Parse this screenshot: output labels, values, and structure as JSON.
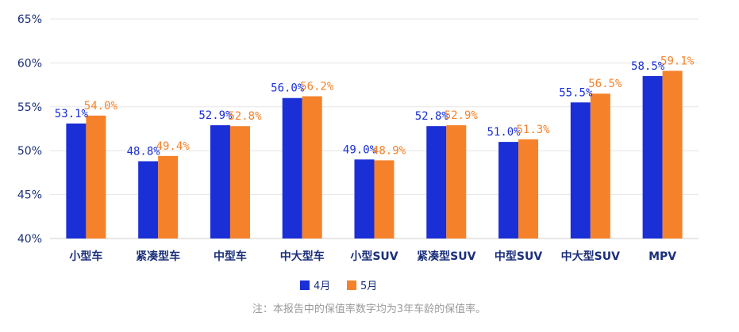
{
  "chart_data": {
    "type": "bar",
    "categories": [
      "小型车",
      "紧凑型车",
      "中型车",
      "中大型车",
      "小型SUV",
      "紧凑型SUV",
      "中型SUV",
      "中大型SUV",
      "MPV"
    ],
    "series": [
      {
        "name": "4月",
        "color": "#1a2fd6",
        "values": [
          53.1,
          48.8,
          52.9,
          56.0,
          49.0,
          52.8,
          51.0,
          55.5,
          58.5
        ],
        "labels": [
          "53.1%",
          "48.8%",
          "52.9%",
          "56.0%",
          "49.0%",
          "52.8%",
          "51.0%",
          "55.5%",
          "58.5%"
        ]
      },
      {
        "name": "5月",
        "color": "#f5822a",
        "values": [
          54.0,
          49.4,
          52.8,
          56.2,
          48.9,
          52.9,
          51.3,
          56.5,
          59.1
        ],
        "labels": [
          "54.0%",
          "49.4%",
          "52.8%",
          "56.2%",
          "48.9%",
          "52.9%",
          "51.3%",
          "56.5%",
          "59.1%"
        ]
      }
    ],
    "ylim": [
      40,
      65
    ],
    "yticks": [
      40,
      45,
      50,
      55,
      60,
      65
    ],
    "ytick_labels": [
      "40%",
      "45%",
      "50%",
      "55%",
      "60%",
      "65%"
    ],
    "grid": true,
    "legend_position": "bottom-center",
    "title": "",
    "xlabel": "",
    "ylabel": ""
  },
  "footnote": "注：本报告中的保值率数字均为3年车龄的保值率。"
}
